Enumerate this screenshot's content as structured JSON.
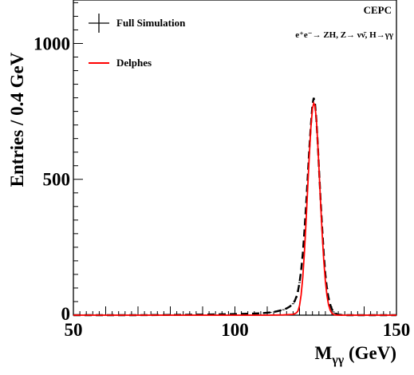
{
  "chart_data": {
    "type": "line",
    "title": "",
    "xlabel": "M_γγ (GeV)",
    "xlabel_main": "M",
    "xlabel_sub": "γγ",
    "xlabel_unit": " (GeV)",
    "ylabel": "Entries / 0.4 GeV",
    "xlim": [
      50,
      150
    ],
    "ylim": [
      0,
      1160
    ],
    "x_ticks": [
      50,
      100,
      150
    ],
    "x_tick_labels": [
      "50",
      "100",
      "150"
    ],
    "y_ticks": [
      0,
      500,
      1000
    ],
    "y_tick_labels": [
      "0",
      "500",
      "1000"
    ],
    "grid": false,
    "legend_position": "top-left",
    "annotations": {
      "experiment": "CEPC",
      "process": "e⁺e⁻→ ZH, Z→ νν̄, H→γγ"
    },
    "series": [
      {
        "name": "Full Simulation",
        "style": "black dashed line with error-bar crosses",
        "color": "#000000",
        "x": [
          50,
          60,
          70,
          80,
          90,
          95,
          100,
          103,
          106,
          109,
          111,
          113,
          114,
          115,
          116,
          117,
          118,
          118.5,
          119,
          119.5,
          120,
          120.5,
          121,
          121.5,
          122,
          122.5,
          123,
          123.5,
          124,
          124.4,
          124.8,
          125.2,
          125.6,
          126,
          126.5,
          127,
          127.5,
          128,
          128.5,
          129,
          129.5,
          130,
          130.5,
          131,
          131.5,
          132,
          133,
          134,
          136,
          140,
          145,
          150
        ],
        "values": [
          0,
          0,
          0,
          1,
          2,
          3,
          4,
          5,
          6,
          8,
          10,
          14,
          17,
          20,
          25,
          32,
          42,
          52,
          66,
          88,
          120,
          165,
          228,
          308,
          400,
          500,
          605,
          700,
          775,
          800,
          780,
          720,
          640,
          545,
          430,
          320,
          225,
          150,
          98,
          62,
          38,
          22,
          12,
          7,
          4,
          2,
          1,
          0,
          0,
          0,
          0,
          0
        ]
      },
      {
        "name": "Delphes",
        "style": "red solid line",
        "color": "#ff0000",
        "x": [
          50,
          60,
          70,
          80,
          90,
          100,
          110,
          115,
          118,
          119,
          119.5,
          120,
          120.5,
          121,
          121.5,
          122,
          122.5,
          123,
          123.5,
          124,
          124.4,
          124.8,
          125.2,
          125.6,
          126,
          126.5,
          127,
          127.5,
          128,
          128.5,
          129,
          129.5,
          130,
          130.5,
          131,
          132,
          134,
          140,
          150
        ],
        "values": [
          0,
          0,
          0,
          0,
          0,
          0,
          0,
          1,
          3,
          8,
          15,
          35,
          75,
          140,
          230,
          340,
          460,
          580,
          690,
          760,
          780,
          770,
          720,
          640,
          545,
          420,
          300,
          200,
          125,
          72,
          38,
          18,
          8,
          3,
          1,
          0,
          0,
          0,
          0
        ]
      }
    ]
  }
}
